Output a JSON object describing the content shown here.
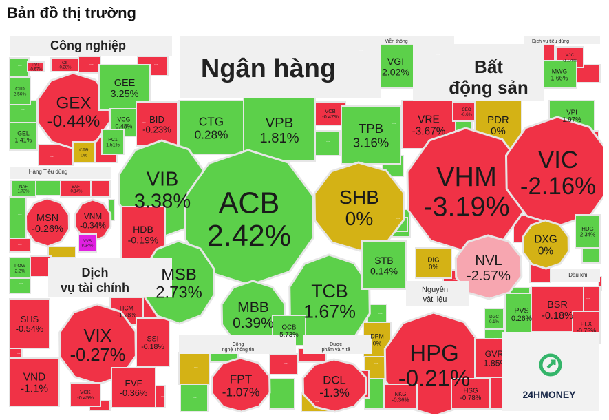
{
  "page": {
    "title": "Bản đồ thị trường"
  },
  "colors": {
    "up": "#5cd04a",
    "down": "#f03246",
    "flat": "#d4b215",
    "ceiling": "#e020e0",
    "floor_light": "#f7a6b0",
    "border": "#e6e6e6"
  },
  "chart_data": {
    "type": "treemap",
    "value_unit": "%",
    "groups": [
      {
        "name": "Công nghiệp",
        "stocks": [
          {
            "ticker": "PVT",
            "change": -0.67
          },
          {
            "ticker": "CII",
            "change": -0.28
          },
          {
            "ticker": "CTD",
            "change": 2.56
          },
          {
            "ticker": "GEX",
            "change": -0.44
          },
          {
            "ticker": "GEE",
            "change": 3.25
          },
          {
            "ticker": "VCG",
            "change": 0.48
          },
          {
            "ticker": "GEL",
            "change": 1.41
          },
          {
            "ticker": "PC1",
            "change": 1.51
          },
          {
            "ticker": "CTR",
            "change": 0
          }
        ]
      },
      {
        "name": "Hàng Tiêu dùng",
        "stocks": [
          {
            "ticker": "NAF",
            "change": 1.72
          },
          {
            "ticker": "BAF",
            "change": -0.14
          },
          {
            "ticker": "MSN",
            "change": -0.26
          },
          {
            "ticker": "VNM",
            "change": -0.34
          },
          {
            "ticker": "VVS",
            "change": 8.34
          }
        ]
      },
      {
        "name": "POW",
        "stocks": [
          {
            "ticker": "POW",
            "change": 2.2
          }
        ]
      },
      {
        "name": "Dịch vụ tài chính",
        "stocks": [
          {
            "ticker": "SHS",
            "change": -0.54
          },
          {
            "ticker": "HCM",
            "change": -1.28
          },
          {
            "ticker": "VIX",
            "change": -0.27
          },
          {
            "ticker": "SSI",
            "change": -0.18
          },
          {
            "ticker": "VND",
            "change": -1.1
          },
          {
            "ticker": "VCK",
            "change": -0.45
          },
          {
            "ticker": "EVF",
            "change": -0.36
          }
        ]
      },
      {
        "name": "Ngân hàng",
        "stocks": [
          {
            "ticker": "BID",
            "change": -0.23
          },
          {
            "ticker": "CTG",
            "change": 0.28
          },
          {
            "ticker": "VPB",
            "change": 1.81
          },
          {
            "ticker": "VCB",
            "change": -0.47
          },
          {
            "ticker": "TPB",
            "change": 3.16
          },
          {
            "ticker": "VIB",
            "change": 3.38
          },
          {
            "ticker": "ACB",
            "change": 2.42
          },
          {
            "ticker": "SHB",
            "change": 0
          },
          {
            "ticker": "HDB",
            "change": -0.19
          },
          {
            "ticker": "MSB",
            "change": 2.73
          },
          {
            "ticker": "MBB",
            "change": 0.39
          },
          {
            "ticker": "TCB",
            "change": 1.67
          },
          {
            "ticker": "STB",
            "change": 0.14
          },
          {
            "ticker": "OCB",
            "change": 5.73
          }
        ]
      },
      {
        "name": "Viễn thông",
        "stocks": [
          {
            "ticker": "VGI",
            "change": 2.02
          }
        ]
      },
      {
        "name": "Dịch vụ Tiêu dùng",
        "stocks": [
          {
            "ticker": "VJC",
            "change": -1.04
          },
          {
            "ticker": "MWG",
            "change": 1.66
          }
        ]
      },
      {
        "name": "Bất động sản",
        "stocks": [
          {
            "ticker": "VRE",
            "change": -3.67
          },
          {
            "ticker": "CEO",
            "change": -0.6
          },
          {
            "ticker": "PDR",
            "change": 0
          },
          {
            "ticker": "VPI",
            "change": 1.97
          },
          {
            "ticker": "VHM",
            "change": -3.19
          },
          {
            "ticker": "VIC",
            "change": -2.16
          },
          {
            "ticker": "HDG",
            "change": 2.34
          },
          {
            "ticker": "DXG",
            "change": 0
          },
          {
            "ticker": "DIG",
            "change": 0
          },
          {
            "ticker": "NVL",
            "change": -2.57
          }
        ]
      },
      {
        "name": "Dầu khí",
        "stocks": [
          {
            "ticker": "PVS",
            "change": 0.26
          },
          {
            "ticker": "BSR",
            "change": -0.18
          },
          {
            "ticker": "PLX",
            "change": -0.75
          }
        ]
      },
      {
        "name": "Nguyên vật liệu",
        "stocks": [
          {
            "ticker": "DPM",
            "change": 0
          },
          {
            "ticker": "HPG",
            "change": -0.21
          },
          {
            "ticker": "DGC",
            "change": 0.1
          },
          {
            "ticker": "GVR",
            "change": -1.85
          },
          {
            "ticker": "NKG",
            "change": -0.36
          },
          {
            "ticker": "HSG",
            "change": -0.78
          }
        ]
      },
      {
        "name": "Công nghệ Thông tin",
        "stocks": [
          {
            "ticker": "FPT",
            "change": -1.07
          }
        ]
      },
      {
        "name": "Dược phẩm và Y tế",
        "stocks": [
          {
            "ticker": "DCL",
            "change": -1.3
          }
        ]
      }
    ],
    "labels": {
      "cong_nghiep": "Công nghiệp",
      "hang_tieu_dung": "Hàng Tiêu dùng",
      "dv_tai_chinh_1": "Dịch",
      "dv_tai_chinh_2": "vụ tài chính",
      "ngan_hang": "Ngân hàng",
      "vien_thong": "Viễn thông",
      "dv_tieu_dung": "Dịch vụ tiêu dùng",
      "bds_1": "Bất",
      "bds_2": "động sản",
      "dau_khi": "Dầu khí",
      "nvl_1": "Nguyên",
      "nvl_2": "vật liệu",
      "cntt_1": "Công",
      "cntt_2": "nghệ Thông tin",
      "duoc_1": "Dược",
      "duoc_2": "phẩm và Y tế",
      "more": "..."
    }
  },
  "brand": {
    "logo_text": "24HMONEY"
  }
}
